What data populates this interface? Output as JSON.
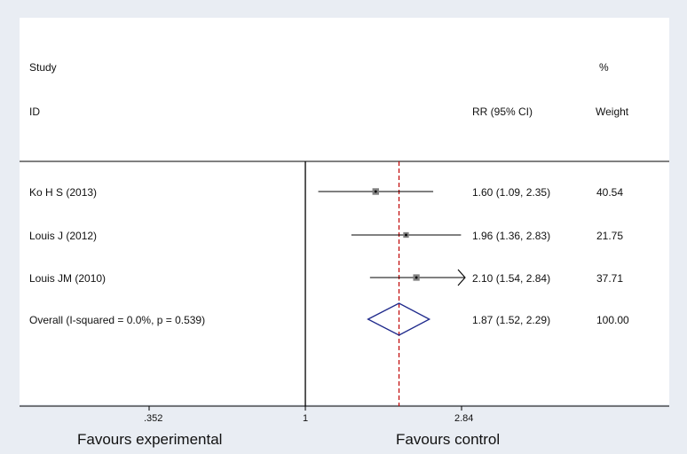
{
  "header": {
    "study_heading": "Study",
    "id_heading": "ID",
    "rr_heading": "RR (95% CI)",
    "weight_heading_top": "%",
    "weight_heading_bottom": "Weight"
  },
  "chart_data": {
    "type": "forest",
    "scale": "log",
    "xlim": [
      0.352,
      2.84
    ],
    "ticks": [
      {
        "value": 0.352,
        "label": ".352"
      },
      {
        "value": 1,
        "label": "1"
      },
      {
        "value": 2.84,
        "label": "2.84"
      }
    ],
    "null_line": 1,
    "pooled_line": 1.87,
    "studies": [
      {
        "label": "Ko H S (2013)",
        "rr": 1.6,
        "lower": 1.09,
        "upper": 2.35,
        "ci_text": "1.60 (1.09, 2.35)",
        "weight": "40.54",
        "arrow_right": false
      },
      {
        "label": "Louis J (2012)",
        "rr": 1.96,
        "lower": 1.36,
        "upper": 2.83,
        "ci_text": "1.96 (1.36, 2.83)",
        "weight": "21.75",
        "arrow_right": false
      },
      {
        "label": "Louis JM (2010)",
        "rr": 2.1,
        "lower": 1.54,
        "upper": 2.84,
        "ci_text": "2.10 (1.54, 2.84)",
        "weight": "37.71",
        "arrow_right": true
      }
    ],
    "overall": {
      "label": "Overall  (I-squared = 0.0%, p = 0.539)",
      "rr": 1.87,
      "lower": 1.52,
      "upper": 2.29,
      "ci_text": "1.87 (1.52, 2.29)",
      "weight": "100.00"
    },
    "colors": {
      "line": "#000000",
      "pooled_line": "#c00000",
      "diamond": "#1f2a8c",
      "marker": "#808080"
    }
  },
  "footer": {
    "left_label": "Favours experimental",
    "right_label": "Favours  control"
  }
}
